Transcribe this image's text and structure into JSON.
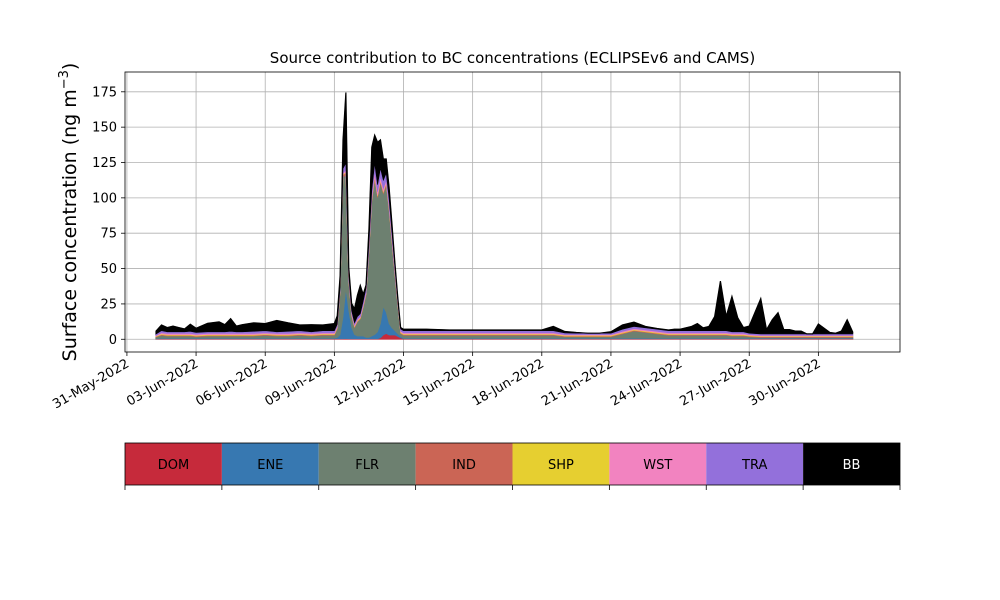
{
  "chart_data": {
    "type": "area",
    "title": "Source contribution to BC concentrations (ECLIPSEv6 and CAMS)",
    "ylabel_main": "Surface concentration (ng m",
    "ylabel_exp": "−3",
    "ylabel_close": ")",
    "xlabel": "",
    "ylim": [
      -9,
      189
    ],
    "xlim": [
      "2022-05-30T22:00",
      "2022-07-03T13:00"
    ],
    "y_ticks": [
      0,
      25,
      50,
      75,
      100,
      125,
      150,
      175
    ],
    "x_ticks": [
      {
        "date": "2022-05-31",
        "label": "31-May-2022"
      },
      {
        "date": "2022-06-03",
        "label": "03-Jun-2022"
      },
      {
        "date": "2022-06-06",
        "label": "06-Jun-2022"
      },
      {
        "date": "2022-06-09",
        "label": "09-Jun-2022"
      },
      {
        "date": "2022-06-12",
        "label": "12-Jun-2022"
      },
      {
        "date": "2022-06-15",
        "label": "15-Jun-2022"
      },
      {
        "date": "2022-06-18",
        "label": "18-Jun-2022"
      },
      {
        "date": "2022-06-21",
        "label": "21-Jun-2022"
      },
      {
        "date": "2022-06-24",
        "label": "24-Jun-2022"
      },
      {
        "date": "2022-06-27",
        "label": "27-Jun-2022"
      },
      {
        "date": "2022-06-30",
        "label": "30-Jun-2022"
      }
    ],
    "grid": true,
    "stacked": true,
    "x": [
      "2022-06-01T06:00",
      "2022-06-01T12:00",
      "2022-06-01T18:00",
      "2022-06-02T00:00",
      "2022-06-02T06:00",
      "2022-06-02T12:00",
      "2022-06-02T18:00",
      "2022-06-03T00:00",
      "2022-06-03T12:00",
      "2022-06-04T00:00",
      "2022-06-04T06:00",
      "2022-06-04T12:00",
      "2022-06-04T18:00",
      "2022-06-05T00:00",
      "2022-06-05T12:00",
      "2022-06-06T00:00",
      "2022-06-06T12:00",
      "2022-06-07T00:00",
      "2022-06-07T12:00",
      "2022-06-08T00:00",
      "2022-06-08T12:00",
      "2022-06-09T00:00",
      "2022-06-09T03:00",
      "2022-06-09T06:00",
      "2022-06-09T09:00",
      "2022-06-09T12:00",
      "2022-06-09T15:00",
      "2022-06-09T18:00",
      "2022-06-09T21:00",
      "2022-06-10T00:00",
      "2022-06-10T03:00",
      "2022-06-10T06:00",
      "2022-06-10T09:00",
      "2022-06-10T12:00",
      "2022-06-10T15:00",
      "2022-06-10T18:00",
      "2022-06-10T21:00",
      "2022-06-11T00:00",
      "2022-06-11T03:00",
      "2022-06-11T06:00",
      "2022-06-11T09:00",
      "2022-06-11T12:00",
      "2022-06-11T15:00",
      "2022-06-11T18:00",
      "2022-06-11T21:00",
      "2022-06-12T00:00",
      "2022-06-12T06:00",
      "2022-06-12T12:00",
      "2022-06-13T00:00",
      "2022-06-14T00:00",
      "2022-06-15T00:00",
      "2022-06-16T00:00",
      "2022-06-17T00:00",
      "2022-06-17T12:00",
      "2022-06-18T00:00",
      "2022-06-18T12:00",
      "2022-06-19T00:00",
      "2022-06-19T12:00",
      "2022-06-20T00:00",
      "2022-06-20T12:00",
      "2022-06-21T00:00",
      "2022-06-21T12:00",
      "2022-06-22T00:00",
      "2022-06-22T12:00",
      "2022-06-23T00:00",
      "2022-06-23T12:00",
      "2022-06-23T18:00",
      "2022-06-24T00:00",
      "2022-06-24T06:00",
      "2022-06-24T12:00",
      "2022-06-24T18:00",
      "2022-06-25T00:00",
      "2022-06-25T06:00",
      "2022-06-25T12:00",
      "2022-06-25T18:00",
      "2022-06-26T00:00",
      "2022-06-26T06:00",
      "2022-06-26T12:00",
      "2022-06-26T18:00",
      "2022-06-27T00:00",
      "2022-06-27T12:00",
      "2022-06-27T18:00",
      "2022-06-28T00:00",
      "2022-06-28T06:00",
      "2022-06-28T12:00",
      "2022-06-28T18:00",
      "2022-06-29T00:00",
      "2022-06-29T06:00",
      "2022-06-29T12:00",
      "2022-06-29T18:00",
      "2022-06-30T00:00",
      "2022-06-30T06:00",
      "2022-06-30T12:00",
      "2022-06-30T18:00",
      "2022-07-01T00:00",
      "2022-07-01T06:00",
      "2022-07-01T12:00"
    ],
    "series": [
      {
        "name": "DOM",
        "color": "#c62a3b",
        "values": [
          0.2,
          0.3,
          0.3,
          0.3,
          0.3,
          0.3,
          0.3,
          0.3,
          0.3,
          0.3,
          0.3,
          0.3,
          0.3,
          0.3,
          0.3,
          0.3,
          0.3,
          0.3,
          0.3,
          0.3,
          0.3,
          0.3,
          0.3,
          0.3,
          0.3,
          0.5,
          0.3,
          0.3,
          0.3,
          0.3,
          0.3,
          0.3,
          0.3,
          0.3,
          0.3,
          0.3,
          0.3,
          1.0,
          3.0,
          4.0,
          3.0,
          3.0,
          3.0,
          2.0,
          1.0,
          0.3,
          0.3,
          0.3,
          0.3,
          0.3,
          0.3,
          0.3,
          0.3,
          0.3,
          0.3,
          0.3,
          0.3,
          0.3,
          0.3,
          0.3,
          0.3,
          0.3,
          0.3,
          0.3,
          0.3,
          0.3,
          0.3,
          0.3,
          0.3,
          0.3,
          0.3,
          0.3,
          0.3,
          0.3,
          0.3,
          0.3,
          0.3,
          0.3,
          0.3,
          0.3,
          0.3,
          0.3,
          0.3,
          0.3,
          0.3,
          0.3,
          0.3,
          0.3,
          0.3,
          0.3,
          0.3,
          0.3,
          0.3,
          0.3,
          0.3,
          0.3,
          0.3
        ]
      },
      {
        "name": "ENE",
        "color": "#3778b1",
        "values": [
          0.3,
          0.5,
          0.5,
          0.5,
          0.5,
          0.5,
          0.5,
          0.5,
          0.5,
          0.5,
          0.5,
          0.5,
          0.5,
          0.5,
          0.5,
          0.5,
          0.5,
          0.5,
          0.5,
          0.5,
          0.5,
          0.5,
          1.0,
          3.0,
          15.0,
          35.0,
          20.0,
          8.0,
          3.0,
          2.0,
          2.0,
          2.0,
          1.0,
          1.0,
          2.0,
          3.0,
          5.0,
          10.0,
          20.0,
          15.0,
          8.0,
          5.0,
          3.0,
          2.0,
          1.0,
          0.5,
          0.5,
          0.5,
          0.5,
          0.5,
          0.5,
          0.5,
          0.5,
          0.5,
          0.5,
          0.5,
          0.5,
          0.5,
          0.5,
          0.5,
          0.5,
          0.5,
          0.5,
          0.5,
          0.5,
          0.5,
          0.5,
          0.5,
          0.5,
          0.5,
          0.5,
          0.5,
          0.5,
          0.5,
          0.5,
          0.5,
          0.5,
          0.5,
          0.5,
          0.5,
          0.5,
          0.5,
          0.5,
          0.5,
          0.5,
          0.5,
          0.5,
          0.5,
          0.5,
          0.5,
          0.5,
          0.5,
          0.5,
          0.5,
          0.5,
          0.5,
          0.5
        ]
      },
      {
        "name": "FLR",
        "color": "#6d8070",
        "values": [
          1.0,
          2.0,
          1.5,
          1.5,
          1.5,
          1.5,
          1.5,
          1.0,
          1.5,
          1.5,
          1.5,
          1.5,
          1.5,
          1.5,
          1.5,
          2.0,
          1.5,
          1.5,
          2.0,
          1.5,
          2.0,
          2.0,
          6.0,
          30.0,
          100.0,
          80.0,
          20.0,
          8.0,
          5.0,
          10.0,
          12.0,
          20.0,
          30.0,
          60.0,
          95.0,
          110.0,
          95.0,
          100.0,
          80.0,
          90.0,
          80.0,
          60.0,
          40.0,
          20.0,
          2.0,
          2.0,
          2.0,
          2.0,
          2.0,
          2.0,
          2.0,
          2.0,
          2.0,
          2.0,
          2.0,
          2.0,
          1.0,
          1.0,
          1.0,
          1.0,
          1.0,
          3.0,
          5.0,
          4.0,
          3.0,
          2.0,
          2.0,
          2.0,
          2.0,
          2.0,
          2.0,
          2.0,
          2.0,
          2.0,
          2.0,
          2.0,
          1.5,
          1.5,
          1.5,
          1.0,
          0.5,
          0.5,
          0.5,
          0.5,
          0.5,
          0.5,
          0.5,
          0.5,
          0.5,
          0.5,
          0.5,
          0.5,
          0.5,
          0.5,
          0.5,
          0.5,
          0.5
        ]
      },
      {
        "name": "IND",
        "color": "#cb6555",
        "values": [
          0.3,
          0.5,
          0.5,
          0.5,
          0.5,
          0.5,
          0.5,
          0.5,
          0.5,
          0.5,
          0.5,
          0.5,
          0.5,
          0.5,
          0.5,
          0.5,
          0.5,
          0.5,
          0.5,
          0.5,
          0.5,
          0.5,
          0.5,
          0.5,
          1.0,
          2.0,
          1.0,
          0.5,
          0.5,
          0.5,
          0.5,
          0.5,
          0.5,
          0.5,
          1.0,
          1.5,
          1.0,
          1.0,
          1.0,
          1.0,
          1.0,
          1.0,
          0.5,
          0.5,
          0.5,
          0.5,
          0.5,
          0.5,
          0.5,
          0.5,
          0.5,
          0.5,
          0.5,
          0.5,
          0.5,
          0.5,
          0.5,
          0.5,
          0.5,
          0.5,
          0.5,
          0.5,
          0.5,
          0.5,
          0.5,
          0.5,
          0.5,
          0.5,
          0.5,
          0.5,
          0.5,
          0.5,
          0.5,
          0.5,
          0.5,
          0.5,
          0.5,
          0.5,
          0.5,
          0.5,
          0.5,
          0.5,
          0.5,
          0.5,
          0.5,
          0.5,
          0.5,
          0.5,
          0.5,
          0.5,
          0.5,
          0.5,
          0.5,
          0.5,
          0.5,
          0.5,
          0.5
        ]
      },
      {
        "name": "SHP",
        "color": "#e6cf30",
        "values": [
          0.3,
          0.5,
          0.5,
          0.5,
          0.5,
          0.5,
          0.5,
          0.5,
          0.5,
          0.5,
          0.5,
          0.5,
          0.5,
          0.5,
          0.5,
          0.5,
          0.5,
          0.5,
          0.5,
          0.5,
          0.5,
          0.5,
          0.5,
          0.5,
          0.5,
          0.5,
          0.5,
          0.5,
          0.5,
          0.5,
          0.5,
          0.5,
          0.5,
          0.5,
          0.5,
          0.5,
          0.5,
          0.5,
          0.5,
          0.5,
          0.5,
          0.5,
          0.5,
          0.5,
          0.5,
          0.5,
          0.5,
          0.5,
          0.5,
          0.5,
          0.5,
          0.5,
          0.5,
          0.5,
          0.5,
          0.5,
          0.5,
          0.5,
          0.5,
          0.5,
          0.5,
          0.5,
          0.5,
          0.5,
          0.5,
          0.5,
          0.5,
          0.5,
          0.5,
          0.5,
          0.5,
          0.5,
          0.5,
          0.5,
          0.5,
          0.5,
          0.5,
          0.5,
          0.5,
          0.5,
          0.5,
          0.5,
          0.5,
          0.5,
          0.5,
          0.5,
          0.5,
          0.5,
          0.5,
          0.5,
          0.5,
          0.5,
          0.5,
          0.5,
          0.5,
          0.5,
          0.5
        ]
      },
      {
        "name": "WST",
        "color": "#f283c0",
        "values": [
          0.5,
          0.8,
          0.8,
          0.8,
          0.8,
          0.8,
          0.8,
          0.8,
          0.8,
          0.8,
          0.8,
          0.8,
          0.8,
          0.8,
          0.8,
          0.8,
          0.8,
          0.8,
          0.8,
          0.8,
          0.8,
          0.8,
          0.8,
          0.8,
          1.0,
          1.5,
          1.0,
          1.0,
          0.8,
          0.8,
          0.8,
          1.0,
          1.0,
          1.5,
          2.0,
          3.0,
          2.5,
          2.5,
          2.0,
          2.0,
          2.0,
          2.0,
          1.5,
          1.0,
          0.8,
          0.8,
          0.8,
          0.8,
          0.8,
          0.8,
          0.8,
          0.8,
          0.8,
          0.8,
          0.8,
          0.8,
          0.5,
          0.5,
          0.5,
          0.5,
          0.5,
          0.8,
          0.8,
          0.8,
          0.8,
          0.8,
          0.8,
          0.8,
          0.8,
          0.8,
          0.8,
          0.8,
          0.8,
          0.8,
          0.8,
          0.8,
          0.8,
          0.8,
          0.8,
          0.5,
          0.5,
          0.5,
          0.5,
          0.5,
          0.5,
          0.5,
          0.5,
          0.5,
          0.5,
          0.5,
          0.5,
          0.5,
          0.5,
          0.5,
          0.5,
          0.5,
          0.5
        ]
      },
      {
        "name": "TRA",
        "color": "#9370db",
        "values": [
          1.0,
          1.5,
          1.2,
          1.2,
          1.2,
          1.2,
          1.5,
          1.2,
          1.2,
          1.2,
          1.2,
          1.5,
          1.2,
          1.2,
          1.5,
          1.5,
          1.2,
          1.5,
          1.5,
          1.2,
          1.5,
          1.5,
          1.5,
          2.0,
          3.0,
          5.0,
          3.0,
          2.0,
          1.5,
          2.0,
          2.0,
          2.5,
          3.0,
          4.0,
          5.0,
          6.0,
          5.0,
          6.0,
          6.0,
          5.0,
          5.0,
          4.0,
          3.0,
          2.0,
          1.5,
          1.5,
          1.5,
          1.5,
          1.5,
          1.5,
          1.5,
          1.5,
          1.5,
          1.5,
          1.5,
          1.5,
          1.2,
          1.0,
          1.0,
          1.0,
          1.0,
          1.5,
          1.5,
          1.5,
          1.5,
          1.5,
          1.5,
          1.5,
          1.5,
          1.5,
          1.5,
          1.5,
          1.5,
          1.5,
          1.5,
          1.5,
          1.2,
          1.2,
          1.2,
          1.0,
          1.0,
          1.0,
          1.0,
          1.0,
          1.0,
          1.0,
          1.0,
          1.0,
          1.0,
          1.0,
          1.0,
          1.0,
          1.0,
          1.0,
          1.0,
          1.0,
          1.0
        ]
      },
      {
        "name": "BB",
        "color": "#000000",
        "values": [
          2.0,
          4.0,
          3.0,
          4.0,
          3.0,
          2.0,
          5.0,
          3.0,
          6.0,
          7.0,
          5.0,
          9.0,
          4.0,
          5.0,
          6.0,
          5.0,
          8.0,
          6.0,
          4.0,
          5.0,
          4.0,
          5.0,
          6.0,
          8.0,
          20.0,
          50.0,
          5.0,
          5.0,
          10.0,
          15.0,
          20.0,
          5.0,
          2.0,
          10.0,
          30.0,
          20.0,
          30.0,
          20.0,
          15.0,
          10.0,
          8.0,
          6.0,
          3.0,
          2.0,
          1.0,
          1.0,
          1.0,
          1.0,
          1.0,
          0.5,
          0.5,
          0.5,
          0.5,
          0.5,
          0.5,
          3.0,
          1.0,
          0.5,
          0.0,
          0.0,
          1.0,
          3.0,
          3.0,
          1.0,
          0.5,
          0.5,
          1.0,
          1.0,
          2.0,
          3.0,
          5.0,
          2.0,
          3.0,
          10.0,
          35.0,
          10.0,
          25.0,
          10.0,
          3.0,
          5.0,
          25.0,
          3.0,
          10.0,
          15.0,
          3.0,
          3.0,
          2.0,
          2.0,
          0.0,
          0.0,
          7.0,
          4.0,
          1.0,
          0.5,
          2.0,
          10.0,
          1.0
        ]
      }
    ]
  }
}
